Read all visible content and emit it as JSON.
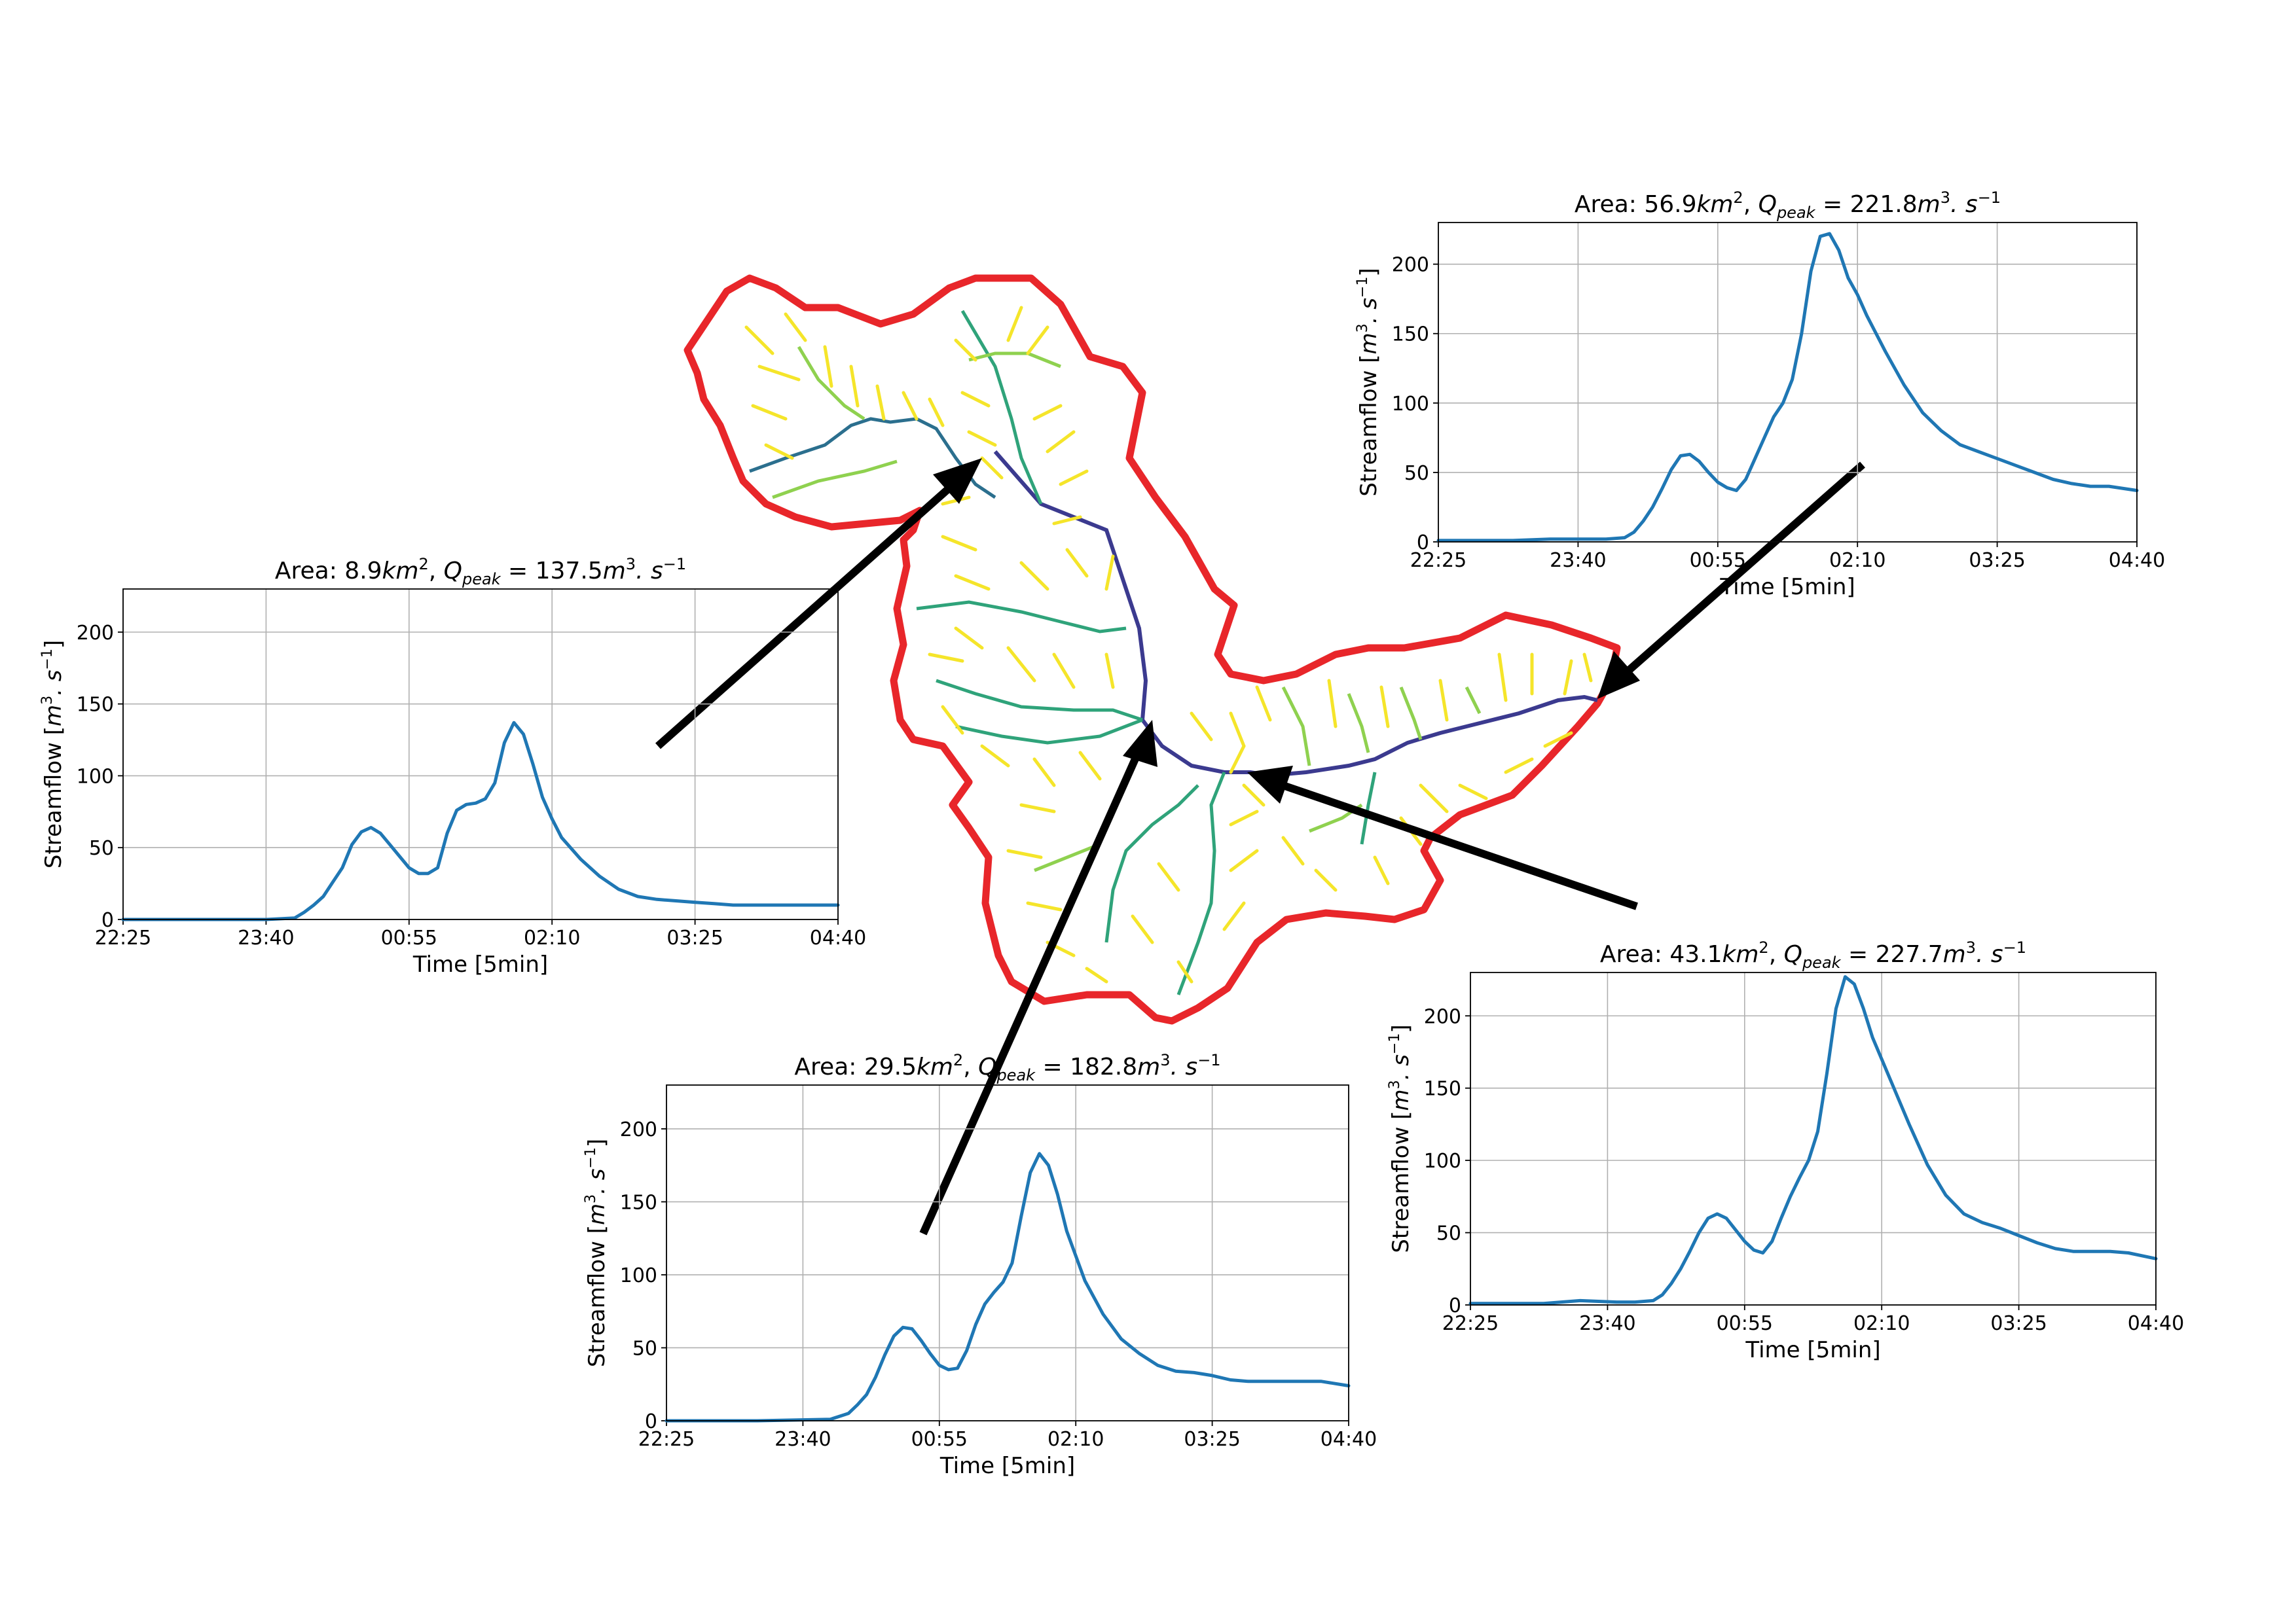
{
  "colors": {
    "series": "#1f77b4",
    "boundary": "#e8262a",
    "arrow": "#000000",
    "stream_orders": [
      "#f5e52a",
      "#8fd14f",
      "#2fa37a",
      "#2b6f8e",
      "#3b3a8f"
    ]
  },
  "chart_data": [
    {
      "type": "line",
      "title_prefix": "Area: 8.9",
      "title_area_unit": "km",
      "title_area_exp": "2",
      "title_q": "Q",
      "title_q_sub": "peak",
      "title_value": " = 137.5",
      "title_flow_unit": "m",
      "title_flow_exp": "3",
      "title_flow_tail": ". s",
      "title_flow_tail_exp": "−1",
      "ylabel_prefix": "Streamflow [",
      "ylabel_unit": "m",
      "ylabel_unit_exp": "3",
      "ylabel_tail": ". s",
      "ylabel_tail_exp": "−1",
      "ylabel_close": "]",
      "xlabel": "Time [5min]",
      "xticks": [
        "22:25",
        "23:40",
        "00:55",
        "02:10",
        "03:25",
        "04:40"
      ],
      "yticks": [
        "0",
        "50",
        "100",
        "150",
        "200"
      ],
      "ylim": [
        0,
        230
      ],
      "xlim": [
        0,
        75
      ],
      "grid": true,
      "series": [
        {
          "x": [
            0,
            10,
            15,
            18,
            19,
            20,
            21,
            22,
            23,
            24,
            25,
            26,
            27,
            28,
            29,
            30,
            31,
            32,
            33,
            34,
            35,
            36,
            37,
            38,
            39,
            40,
            41,
            42,
            43,
            44,
            45,
            46,
            48,
            50,
            52,
            54,
            56,
            58,
            60,
            62,
            64,
            66,
            68,
            70,
            72,
            75
          ],
          "y": [
            0,
            0,
            0,
            1,
            5,
            10,
            16,
            26,
            36,
            52,
            61,
            64,
            60,
            52,
            44,
            36,
            32,
            32,
            36,
            60,
            76,
            80,
            81,
            84,
            95,
            123,
            137,
            129,
            108,
            85,
            70,
            57,
            42,
            30,
            21,
            16,
            14,
            13,
            12,
            11,
            10,
            10,
            10,
            10,
            10,
            10
          ]
        }
      ]
    },
    {
      "type": "line",
      "title_prefix": "Area: 29.5",
      "title_area_unit": "km",
      "title_area_exp": "2",
      "title_q": "Q",
      "title_q_sub": "peak",
      "title_value": " = 182.8",
      "title_flow_unit": "m",
      "title_flow_exp": "3",
      "title_flow_tail": ". s",
      "title_flow_tail_exp": "−1",
      "ylabel_prefix": "Streamflow [",
      "ylabel_unit": "m",
      "ylabel_unit_exp": "3",
      "ylabel_tail": ". s",
      "ylabel_tail_exp": "−1",
      "ylabel_close": "]",
      "xlabel": "Time [5min]",
      "xticks": [
        "22:25",
        "23:40",
        "00:55",
        "02:10",
        "03:25",
        "04:40"
      ],
      "yticks": [
        "0",
        "50",
        "100",
        "150",
        "200"
      ],
      "ylim": [
        0,
        230
      ],
      "xlim": [
        0,
        75
      ],
      "grid": true,
      "series": [
        {
          "x": [
            0,
            10,
            18,
            20,
            21,
            22,
            23,
            24,
            25,
            26,
            27,
            28,
            29,
            30,
            31,
            32,
            33,
            34,
            35,
            36,
            37,
            38,
            39,
            40,
            41,
            42,
            43,
            44,
            45,
            46,
            48,
            50,
            52,
            54,
            56,
            58,
            60,
            62,
            64,
            66,
            68,
            70,
            72,
            75
          ],
          "y": [
            0,
            0,
            1,
            5,
            11,
            18,
            30,
            45,
            58,
            64,
            63,
            55,
            46,
            38,
            35,
            36,
            48,
            66,
            80,
            88,
            95,
            108,
            140,
            170,
            183,
            175,
            155,
            130,
            113,
            96,
            73,
            56,
            46,
            38,
            34,
            33,
            31,
            28,
            27,
            27,
            27,
            27,
            27,
            24
          ]
        }
      ]
    },
    {
      "type": "line",
      "title_prefix": "Area: 56.9",
      "title_area_unit": "km",
      "title_area_exp": "2",
      "title_q": "Q",
      "title_q_sub": "peak",
      "title_value": " = 221.8",
      "title_flow_unit": "m",
      "title_flow_exp": "3",
      "title_flow_tail": ". s",
      "title_flow_tail_exp": "−1",
      "ylabel_prefix": "Streamflow [",
      "ylabel_unit": "m",
      "ylabel_unit_exp": "3",
      "ylabel_tail": ". s",
      "ylabel_tail_exp": "−1",
      "ylabel_close": "]",
      "xlabel": "Time [5min]",
      "xticks": [
        "22:25",
        "23:40",
        "00:55",
        "02:10",
        "03:25",
        "04:40"
      ],
      "yticks": [
        "0",
        "50",
        "100",
        "150",
        "200"
      ],
      "ylim": [
        0,
        230
      ],
      "xlim": [
        0,
        75
      ],
      "grid": true,
      "series": [
        {
          "x": [
            0,
            8,
            12,
            16,
            18,
            20,
            21,
            22,
            23,
            24,
            25,
            26,
            27,
            28,
            29,
            30,
            31,
            32,
            33,
            34,
            35,
            36,
            37,
            38,
            39,
            40,
            41,
            42,
            43,
            44,
            45,
            46,
            48,
            50,
            52,
            54,
            56,
            58,
            60,
            62,
            64,
            66,
            68,
            70,
            72,
            75
          ],
          "y": [
            1,
            1,
            2,
            2,
            2,
            3,
            7,
            15,
            25,
            38,
            52,
            62,
            63,
            58,
            50,
            43,
            39,
            37,
            45,
            60,
            75,
            90,
            100,
            117,
            150,
            195,
            220,
            222,
            210,
            190,
            178,
            163,
            137,
            113,
            93,
            80,
            70,
            65,
            60,
            55,
            50,
            45,
            42,
            40,
            40,
            37
          ]
        }
      ]
    },
    {
      "type": "line",
      "title_prefix": "Area: 43.1",
      "title_area_unit": "km",
      "title_area_exp": "2",
      "title_q": "Q",
      "title_q_sub": "peak",
      "title_value": " = 227.7",
      "title_flow_unit": "m",
      "title_flow_exp": "3",
      "title_flow_tail": ". s",
      "title_flow_tail_exp": "−1",
      "ylabel_prefix": "Streamflow [",
      "ylabel_unit": "m",
      "ylabel_unit_exp": "3",
      "ylabel_tail": ". s",
      "ylabel_tail_exp": "−1",
      "ylabel_close": "]",
      "xlabel": "Time [5min]",
      "xticks": [
        "22:25",
        "23:40",
        "00:55",
        "02:10",
        "03:25",
        "04:40"
      ],
      "yticks": [
        "0",
        "50",
        "100",
        "150",
        "200"
      ],
      "ylim": [
        0,
        230
      ],
      "xlim": [
        0,
        75
      ],
      "grid": true,
      "series": [
        {
          "x": [
            0,
            8,
            12,
            16,
            18,
            20,
            21,
            22,
            23,
            24,
            25,
            26,
            27,
            28,
            29,
            30,
            31,
            32,
            33,
            34,
            35,
            36,
            37,
            38,
            39,
            40,
            41,
            42,
            43,
            44,
            45,
            46,
            48,
            50,
            52,
            54,
            56,
            58,
            60,
            62,
            64,
            66,
            68,
            70,
            72,
            75
          ],
          "y": [
            1,
            1,
            3,
            2,
            2,
            3,
            7,
            15,
            25,
            37,
            50,
            60,
            63,
            60,
            52,
            44,
            38,
            36,
            44,
            60,
            75,
            88,
            100,
            120,
            160,
            205,
            227,
            222,
            205,
            185,
            170,
            155,
            125,
            97,
            76,
            63,
            57,
            53,
            48,
            43,
            39,
            37,
            37,
            37,
            36,
            32
          ]
        }
      ]
    }
  ]
}
